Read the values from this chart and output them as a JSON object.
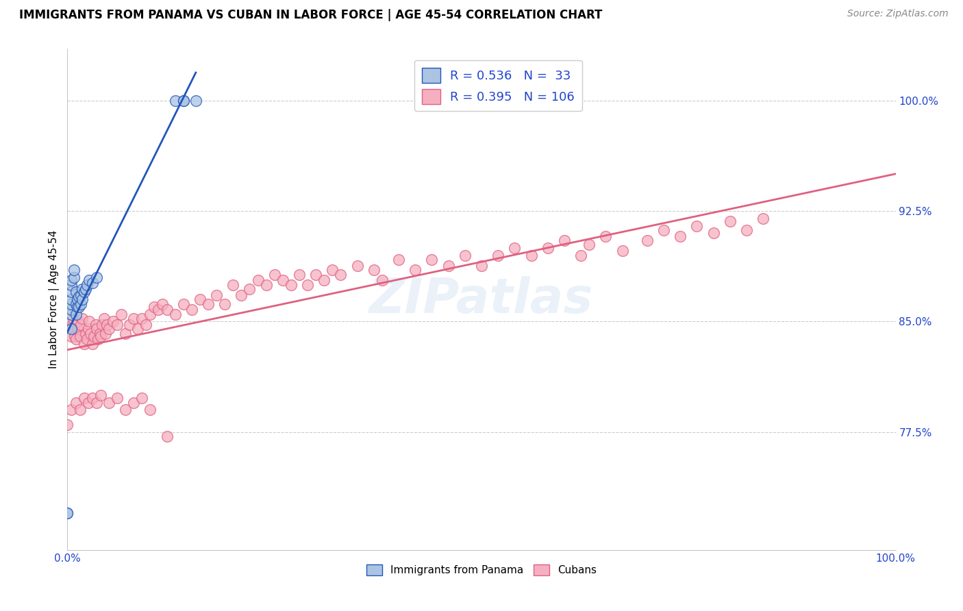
{
  "title": "IMMIGRANTS FROM PANAMA VS CUBAN IN LABOR FORCE | AGE 45-54 CORRELATION CHART",
  "source": "Source: ZipAtlas.com",
  "ylabel": "In Labor Force | Age 45-54",
  "xlim": [
    0.0,
    1.0
  ],
  "ylim": [
    0.695,
    1.035
  ],
  "yticks": [
    0.775,
    0.85,
    0.925,
    1.0
  ],
  "ytick_labels": [
    "77.5%",
    "85.0%",
    "92.5%",
    "100.0%"
  ],
  "xticks": [
    0.0,
    0.2,
    0.4,
    0.6,
    0.8,
    1.0
  ],
  "xtick_labels": [
    "0.0%",
    "",
    "",
    "",
    "",
    "100.0%"
  ],
  "panama_R": 0.536,
  "panama_N": 33,
  "cuban_R": 0.395,
  "cuban_N": 106,
  "panama_color": "#aac4e2",
  "cuban_color": "#f5afc0",
  "panama_line_color": "#2255bb",
  "cuban_line_color": "#e06080",
  "legend_text_color": "#2244cc",
  "watermark": "ZIPatlas",
  "panama_x": [
    0.0,
    0.0,
    0.005,
    0.005,
    0.005,
    0.005,
    0.005,
    0.005,
    0.005,
    0.005,
    0.008,
    0.008,
    0.01,
    0.01,
    0.01,
    0.012,
    0.012,
    0.014,
    0.014,
    0.016,
    0.016,
    0.018,
    0.018,
    0.02,
    0.022,
    0.024,
    0.026,
    0.03,
    0.035,
    0.13,
    0.14,
    0.14,
    0.155
  ],
  "panama_y": [
    0.72,
    0.72,
    0.845,
    0.855,
    0.858,
    0.862,
    0.865,
    0.87,
    0.875,
    0.878,
    0.88,
    0.885,
    0.855,
    0.862,
    0.87,
    0.86,
    0.865,
    0.86,
    0.867,
    0.862,
    0.868,
    0.865,
    0.872,
    0.87,
    0.872,
    0.875,
    0.878,
    0.876,
    0.88,
    1.0,
    1.0,
    1.0,
    1.0
  ],
  "cuban_x": [
    0.005,
    0.006,
    0.007,
    0.008,
    0.009,
    0.01,
    0.012,
    0.013,
    0.015,
    0.016,
    0.018,
    0.02,
    0.022,
    0.024,
    0.025,
    0.026,
    0.028,
    0.03,
    0.032,
    0.034,
    0.035,
    0.037,
    0.039,
    0.04,
    0.042,
    0.044,
    0.046,
    0.048,
    0.05,
    0.055,
    0.06,
    0.065,
    0.07,
    0.075,
    0.08,
    0.085,
    0.09,
    0.095,
    0.1,
    0.105,
    0.11,
    0.115,
    0.12,
    0.13,
    0.14,
    0.15,
    0.16,
    0.17,
    0.18,
    0.19,
    0.2,
    0.21,
    0.22,
    0.23,
    0.24,
    0.25,
    0.26,
    0.27,
    0.28,
    0.29,
    0.3,
    0.31,
    0.32,
    0.33,
    0.35,
    0.37,
    0.38,
    0.4,
    0.42,
    0.44,
    0.46,
    0.48,
    0.5,
    0.52,
    0.54,
    0.56,
    0.58,
    0.6,
    0.62,
    0.63,
    0.65,
    0.67,
    0.7,
    0.72,
    0.74,
    0.76,
    0.78,
    0.8,
    0.82,
    0.84,
    0.0,
    0.005,
    0.01,
    0.015,
    0.02,
    0.025,
    0.03,
    0.035,
    0.04,
    0.05,
    0.06,
    0.07,
    0.08,
    0.09,
    0.1,
    0.12
  ],
  "cuban_y": [
    0.84,
    0.848,
    0.852,
    0.845,
    0.84,
    0.838,
    0.845,
    0.85,
    0.84,
    0.848,
    0.852,
    0.835,
    0.842,
    0.838,
    0.845,
    0.85,
    0.842,
    0.835,
    0.84,
    0.848,
    0.845,
    0.838,
    0.842,
    0.84,
    0.848,
    0.852,
    0.842,
    0.848,
    0.845,
    0.85,
    0.848,
    0.855,
    0.842,
    0.848,
    0.852,
    0.845,
    0.852,
    0.848,
    0.855,
    0.86,
    0.858,
    0.862,
    0.858,
    0.855,
    0.862,
    0.858,
    0.865,
    0.862,
    0.868,
    0.862,
    0.875,
    0.868,
    0.872,
    0.878,
    0.875,
    0.882,
    0.878,
    0.875,
    0.882,
    0.875,
    0.882,
    0.878,
    0.885,
    0.882,
    0.888,
    0.885,
    0.878,
    0.892,
    0.885,
    0.892,
    0.888,
    0.895,
    0.888,
    0.895,
    0.9,
    0.895,
    0.9,
    0.905,
    0.895,
    0.902,
    0.908,
    0.898,
    0.905,
    0.912,
    0.908,
    0.915,
    0.91,
    0.918,
    0.912,
    0.92,
    0.78,
    0.79,
    0.795,
    0.79,
    0.798,
    0.795,
    0.798,
    0.795,
    0.8,
    0.795,
    0.798,
    0.79,
    0.795,
    0.798,
    0.79,
    0.772
  ]
}
